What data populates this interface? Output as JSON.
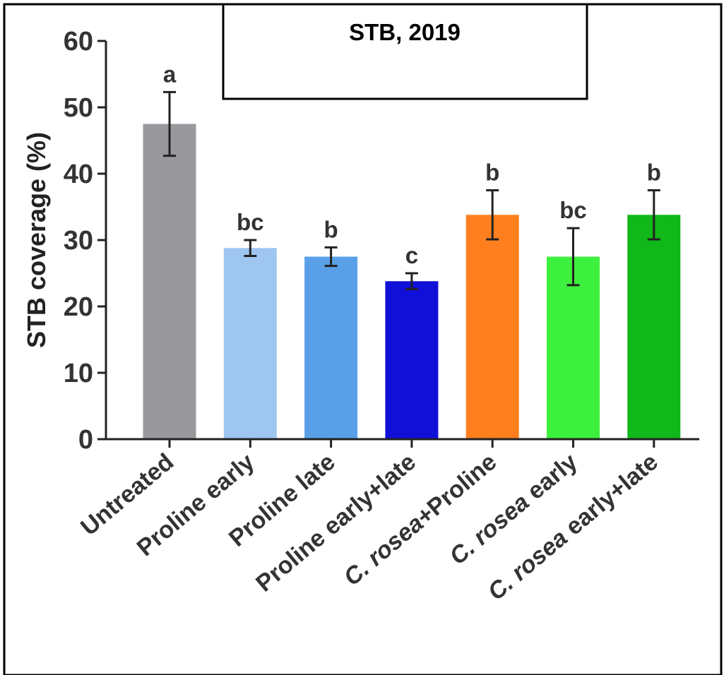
{
  "chart_data": {
    "type": "bar",
    "title": "STB, 2019",
    "xlabel": "",
    "ylabel": "STB coverage (%)",
    "ylim": [
      0,
      60
    ],
    "yticks": [
      0,
      10,
      20,
      30,
      40,
      50,
      60
    ],
    "grid": false,
    "categories": [
      "Untreated",
      "Proline early",
      "Proline late",
      "Proline early+late",
      "C. rosea+Proline",
      "C. rosea early",
      "C. rosea early+late"
    ],
    "values": [
      47.5,
      28.8,
      27.5,
      23.8,
      33.8,
      27.5,
      33.8
    ],
    "errors": [
      4.8,
      1.2,
      1.4,
      1.2,
      3.7,
      4.3,
      3.7
    ],
    "significance": [
      "a",
      "bc",
      "b",
      "c",
      "b",
      "bc",
      "b"
    ],
    "colors": [
      "#98989d",
      "#9ec6f1",
      "#5aa0e9",
      "#1010d8",
      "#ff7f1e",
      "#3ef03e",
      "#10b81a"
    ]
  }
}
